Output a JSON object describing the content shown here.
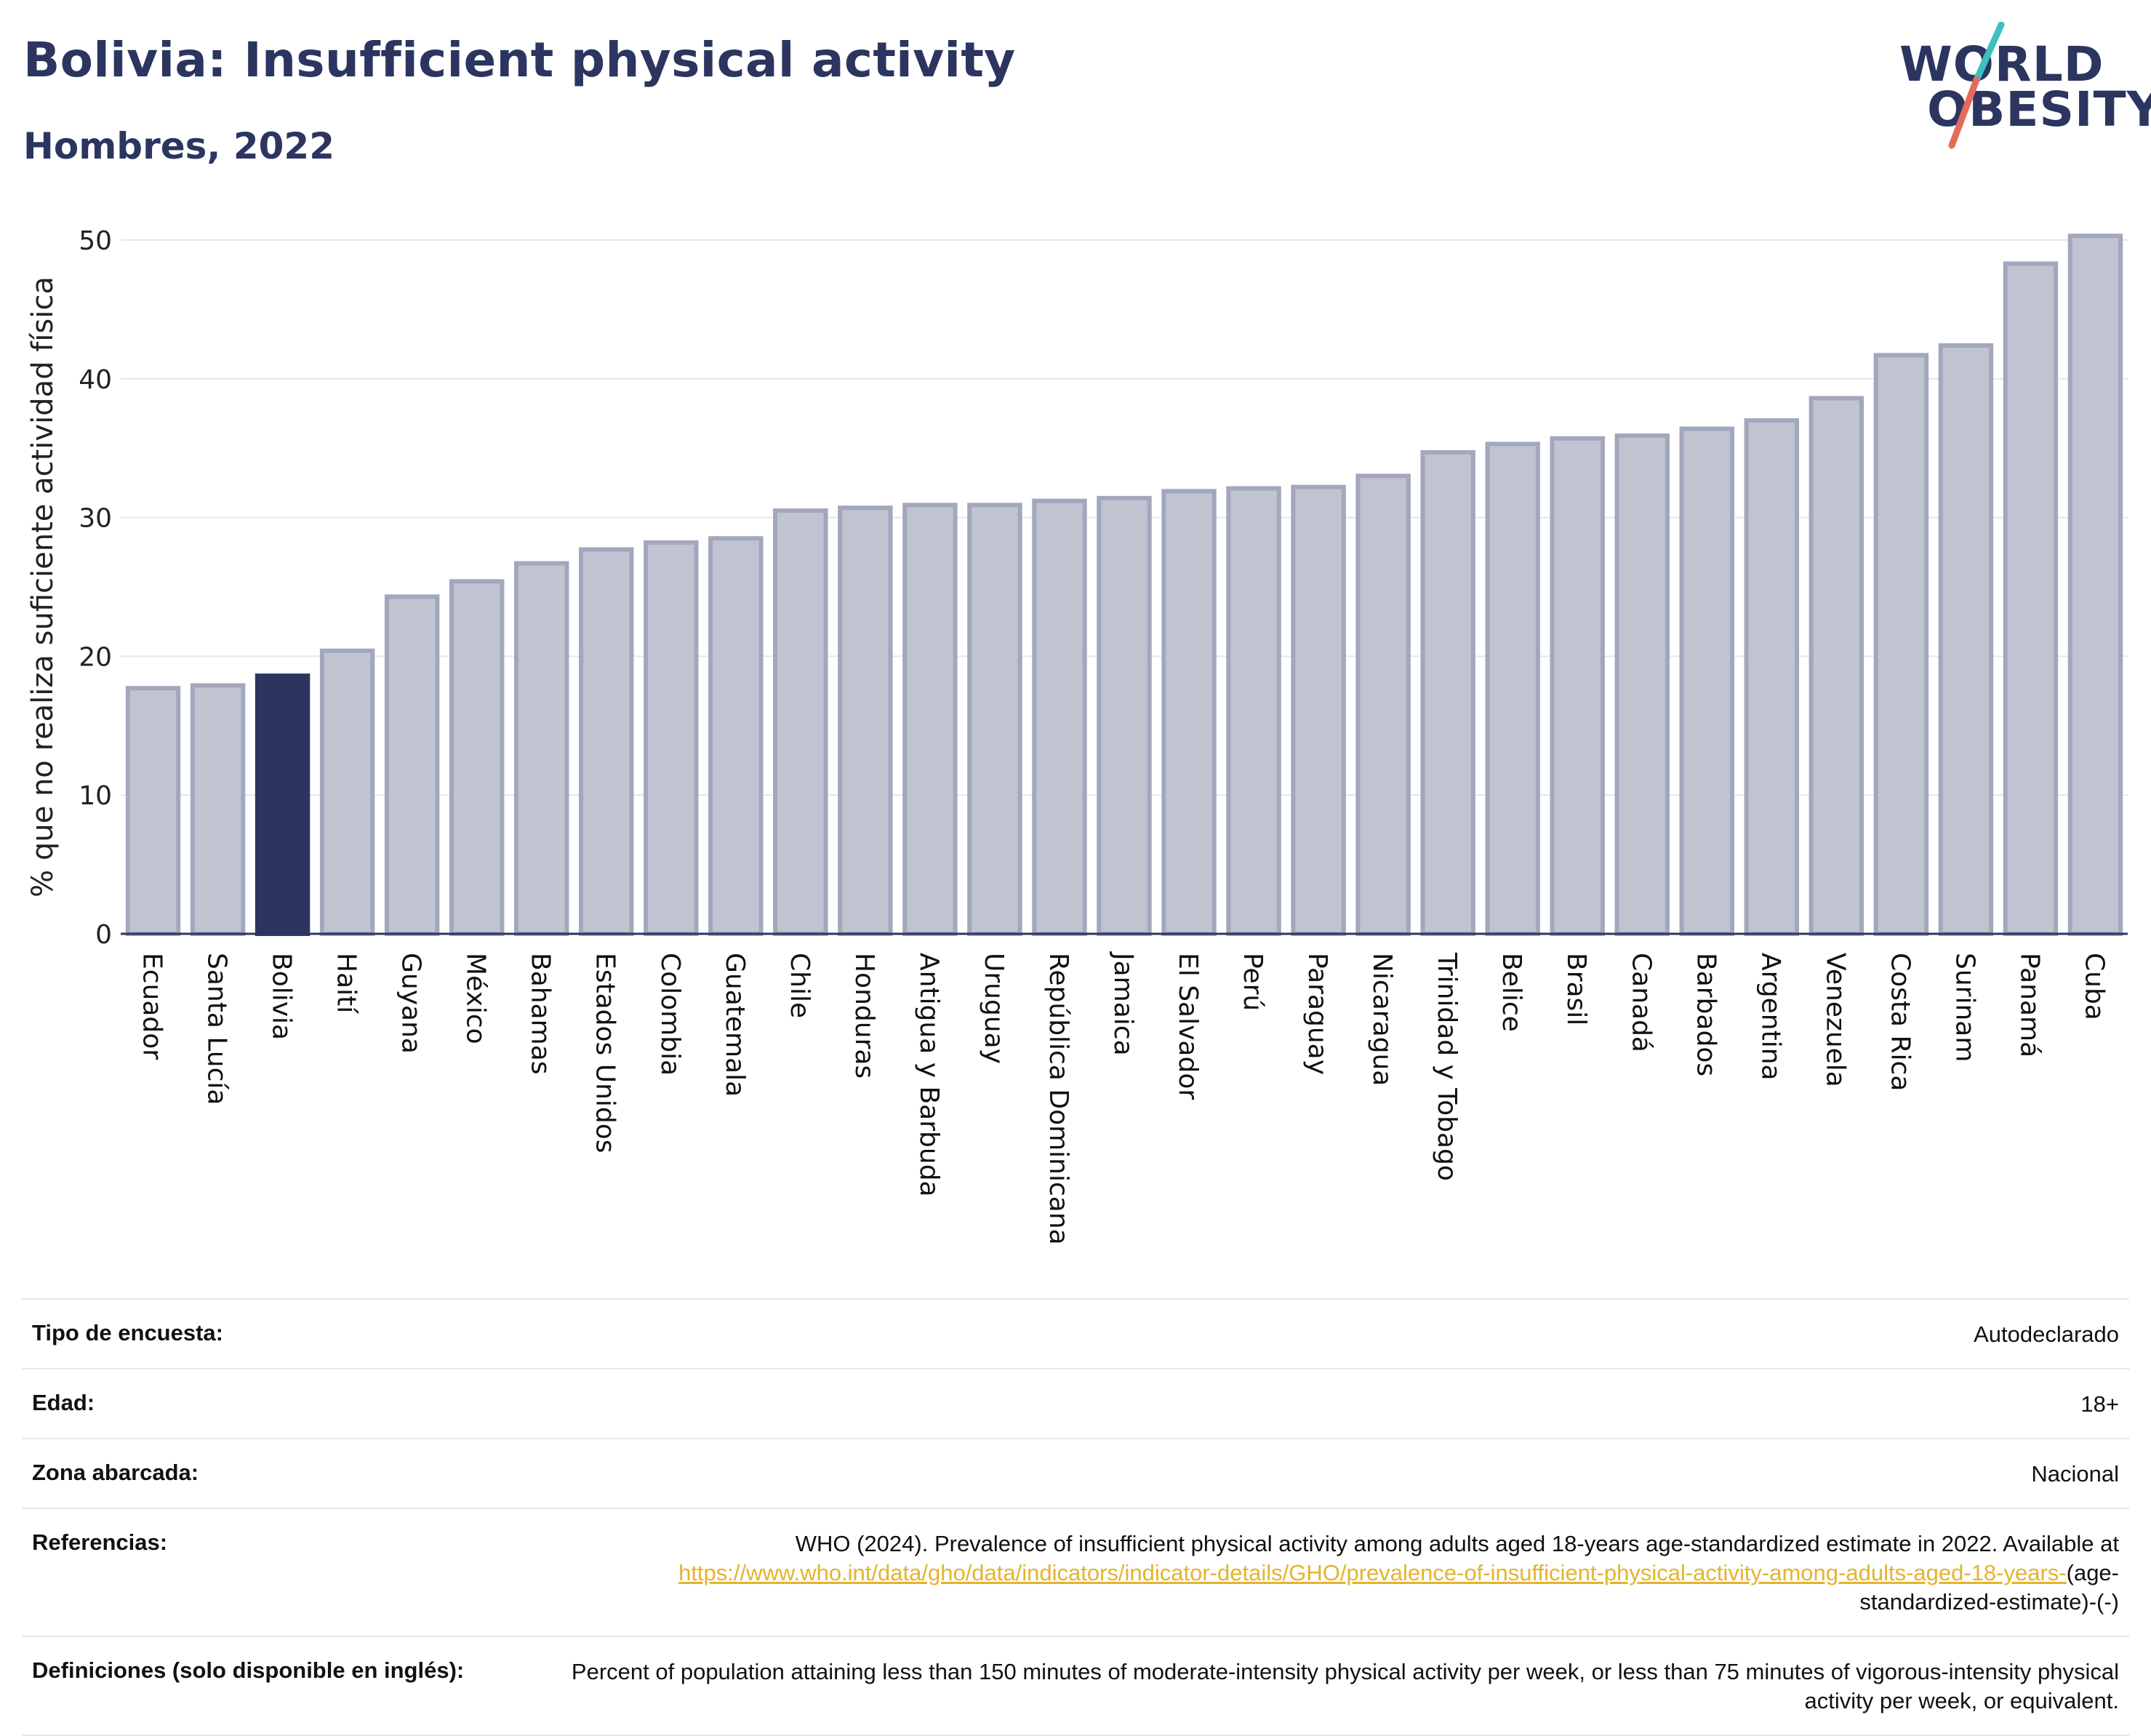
{
  "header": {
    "title": "Bolivia: Insufficient physical activity",
    "subtitle": "Hombres, 2022"
  },
  "logo": {
    "line1": "WORLD",
    "line2": "OBESITY",
    "slash_colors": [
      "#3fbfbf",
      "#e46b5a"
    ]
  },
  "colors": {
    "highlight": "#2b3560",
    "bar_fill": "#c0c3d0",
    "bar_stroke": "#a3a7bd",
    "grid": "#e6e6e6",
    "axis": "#2b3560"
  },
  "chart_data": {
    "type": "bar",
    "ylabel": "% que no realiza suficiente actividad física",
    "ylim": [
      0,
      50
    ],
    "yticks": [
      0,
      10,
      20,
      30,
      40,
      50
    ],
    "grid": true,
    "highlight": "Bolivia",
    "categories": [
      "Ecuador",
      "Santa Lucía",
      "Bolivia",
      "Haití",
      "Guyana",
      "México",
      "Bahamas",
      "Estados Unidos",
      "Colombia",
      "Guatemala",
      "Chile",
      "Honduras",
      "Antigua y Barbuda",
      "Uruguay",
      "República Dominicana",
      "Jamaica",
      "El Salvador",
      "Perú",
      "Paraguay",
      "Nicaragua",
      "Trinidad y Tobago",
      "Belice",
      "Brasil",
      "Canadá",
      "Barbados",
      "Argentina",
      "Venezuela",
      "Costa Rica",
      "Surinam",
      "Panamá",
      "Cuba"
    ],
    "values": [
      17.7,
      17.9,
      18.6,
      20.4,
      24.3,
      25.4,
      26.7,
      27.7,
      28.2,
      28.5,
      30.5,
      30.7,
      30.9,
      30.9,
      31.2,
      31.4,
      31.9,
      32.1,
      32.2,
      33.0,
      34.7,
      35.3,
      35.7,
      35.9,
      36.4,
      37.0,
      38.6,
      41.7,
      42.4,
      48.3,
      50.3
    ]
  },
  "info": {
    "survey_label": "Tipo de encuesta:",
    "survey_value": "Autodeclarado",
    "age_label": "Edad:",
    "age_value": "18+",
    "area_label": "Zona abarcada:",
    "area_value": "Nacional",
    "ref_label": "Referencias:",
    "ref_text": "WHO (2024). Prevalence of insufficient physical activity among adults aged 18-years age-standardized estimate in 2022. Available at ",
    "ref_link": "https://www.who.int/data/gho/data/indicators/indicator-details/GHO/prevalence-of-insufficient-physical-activity-among-adults-aged-18-years-",
    "ref_tail": "(age-standardized-estimate)-(-)",
    "def_label": "Definiciones (solo disponible en inglés):",
    "def_value": "Percent of population attaining less than 150 minutes of moderate-intensity physical activity per week, or less than 75 minutes of vigorous-intensity physical activity per week, or equivalent."
  }
}
